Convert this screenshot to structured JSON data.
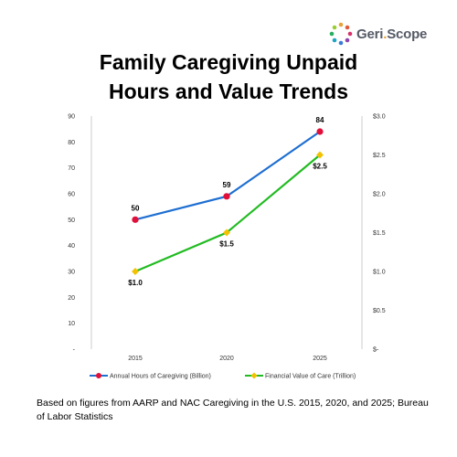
{
  "brand": {
    "name_part1": "Geri",
    "name_dot": ".",
    "name_part2": "Scope"
  },
  "title_line1": "Family Caregiving Unpaid",
  "title_line2": "Hours and Value Trends",
  "source_note": "Based on figures from AARP and NAC Caregiving in the U.S. 2015, 2020, and 2025; Bureau of Labor Statistics",
  "colors": {
    "hours_line": "#1f6fd1",
    "hours_marker": "#e0103a",
    "value_line": "#22bb22",
    "value_marker": "#f2c200",
    "axis": "#cccccc"
  },
  "chart_data": {
    "type": "line",
    "categories": [
      "2015",
      "2020",
      "2025"
    ],
    "left_axis": {
      "ylim": [
        0,
        90
      ],
      "ticks": [
        "-",
        "10",
        "20",
        "30",
        "40",
        "50",
        "60",
        "70",
        "80",
        "90"
      ]
    },
    "right_axis": {
      "ylim": [
        0,
        3.0
      ],
      "ticks": [
        "$-",
        "$0.5",
        "$1.0",
        "$1.5",
        "$2.0",
        "$2.5",
        "$3.0"
      ]
    },
    "series": [
      {
        "name": "Annual Hours of Caregiving (Billion)",
        "axis": "left",
        "values": [
          50,
          59,
          84
        ],
        "labels": [
          "50",
          "59",
          "84"
        ]
      },
      {
        "name": "Financial Value of Care (Trillion)",
        "axis": "right",
        "values": [
          1.0,
          1.5,
          2.5
        ],
        "labels": [
          "$1.0",
          "$1.5",
          "$2.5"
        ]
      }
    ],
    "legend": "bottom",
    "grid": false
  }
}
